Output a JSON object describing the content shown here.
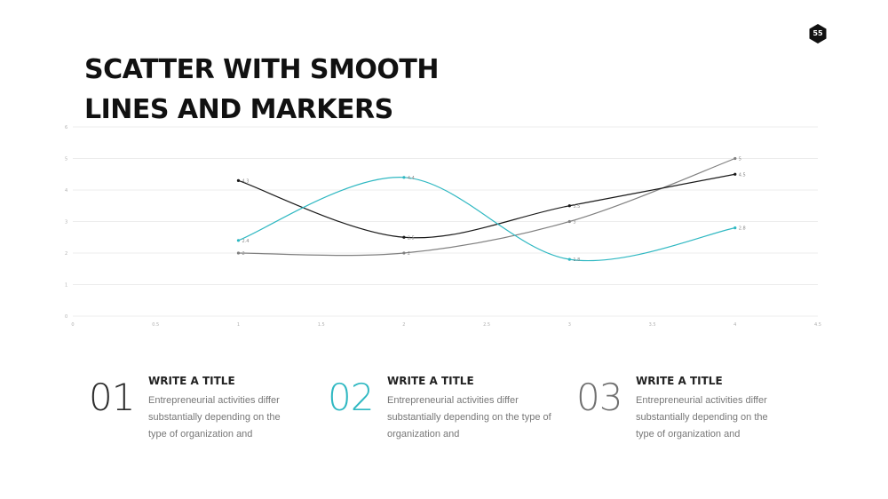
{
  "page_number": "55",
  "title": "SCATTER WITH SMOOTH LINES AND MARKERS",
  "title_lines": [
    "SCATTER WITH SMOOTH",
    "LINES AND MARKERS"
  ],
  "colors": {
    "series1": "#1a1a1a",
    "series2": "#2fb8c2",
    "series3": "#808080",
    "number_1": "#2b2b2b",
    "number_2": "#2fb8c2",
    "number_3": "#707070",
    "grid": "#ececec",
    "badge": "#111111"
  },
  "chart_data": {
    "type": "scatter",
    "smooth": true,
    "markers": true,
    "title": "",
    "xlabel": "",
    "ylabel": "",
    "xlim": [
      0,
      4.5
    ],
    "ylim": [
      0,
      6
    ],
    "x_ticks": [
      "0",
      "0.5",
      "1",
      "1.5",
      "2",
      "2.5",
      "3",
      "3.5",
      "4",
      "4.5"
    ],
    "y_ticks": [
      "0",
      "1",
      "2",
      "3",
      "4",
      "5",
      "6"
    ],
    "grid": "horizontal",
    "legend": "none",
    "series": [
      {
        "x": [
          1,
          2,
          3,
          4
        ],
        "y": [
          4.3,
          2.5,
          3.5,
          4.5
        ],
        "labels": [
          "4.3",
          "2.5",
          "3.5",
          "4.5"
        ]
      },
      {
        "x": [
          1,
          2,
          3,
          4
        ],
        "y": [
          2.4,
          4.4,
          1.8,
          2.8
        ],
        "labels": [
          "2.4",
          "4.4",
          "1.8",
          "2.8"
        ]
      },
      {
        "x": [
          1,
          2,
          3,
          4
        ],
        "y": [
          2,
          2,
          3,
          5
        ],
        "labels": [
          "2",
          "2",
          "3",
          "5"
        ]
      }
    ]
  },
  "features": [
    {
      "number": "01",
      "title": "WRITE A TITLE",
      "body": "Entrepreneurial activities differ substantially depending on the type of organization and"
    },
    {
      "number": "02",
      "title": "WRITE A TITLE",
      "body": "Entrepreneurial activities differ substantially depending on the type of organization and"
    },
    {
      "number": "03",
      "title": "WRITE A TITLE",
      "body": "Entrepreneurial activities differ substantially depending on the type of organization and"
    }
  ]
}
